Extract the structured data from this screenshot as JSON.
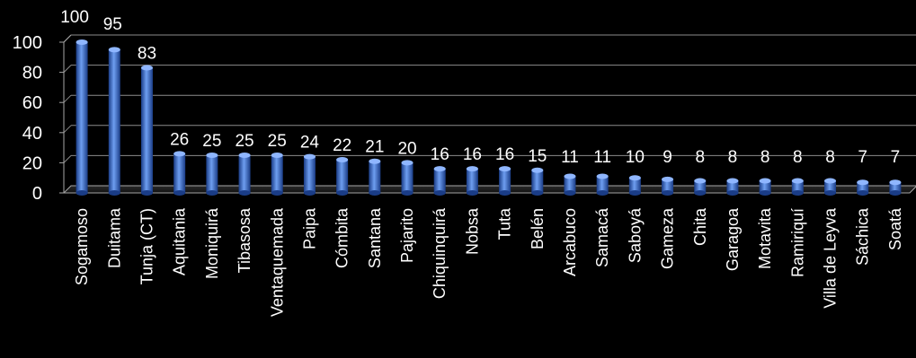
{
  "chart_data": {
    "type": "bar",
    "categories": [
      "Sogamoso",
      "Duitama",
      "Tunja (CT)",
      "Aquitania",
      "Moniquirá",
      "Tibasosa",
      "Ventaquemada",
      "Paipa",
      "Cómbita",
      "Santana",
      "Pajarito",
      "Chiquinquirá",
      "Nobsa",
      "Tuta",
      "Belén",
      "Arcabuco",
      "Samacá",
      "Saboyá",
      "Gameza",
      "Chita",
      "Garagoa",
      "Motavita",
      "Ramiriquí",
      "Villa de Leyva",
      "Sáchica",
      "Soatá"
    ],
    "values": [
      100,
      95,
      83,
      26,
      25,
      25,
      25,
      24,
      22,
      21,
      20,
      16,
      16,
      16,
      15,
      11,
      11,
      10,
      9,
      8,
      8,
      8,
      8,
      8,
      7,
      7
    ],
    "ylim": [
      0,
      100
    ],
    "yticks": [
      0,
      20,
      40,
      60,
      80,
      100
    ],
    "grid": true,
    "legend": "none",
    "colors": {
      "bar": "#3b6fd0",
      "bar_light": "#8fb6ff",
      "bar_dark": "#17367a",
      "axis": "#a6a6a6",
      "grid": "#8c8c8c",
      "text": "#ffffff",
      "background": "#000000"
    }
  }
}
